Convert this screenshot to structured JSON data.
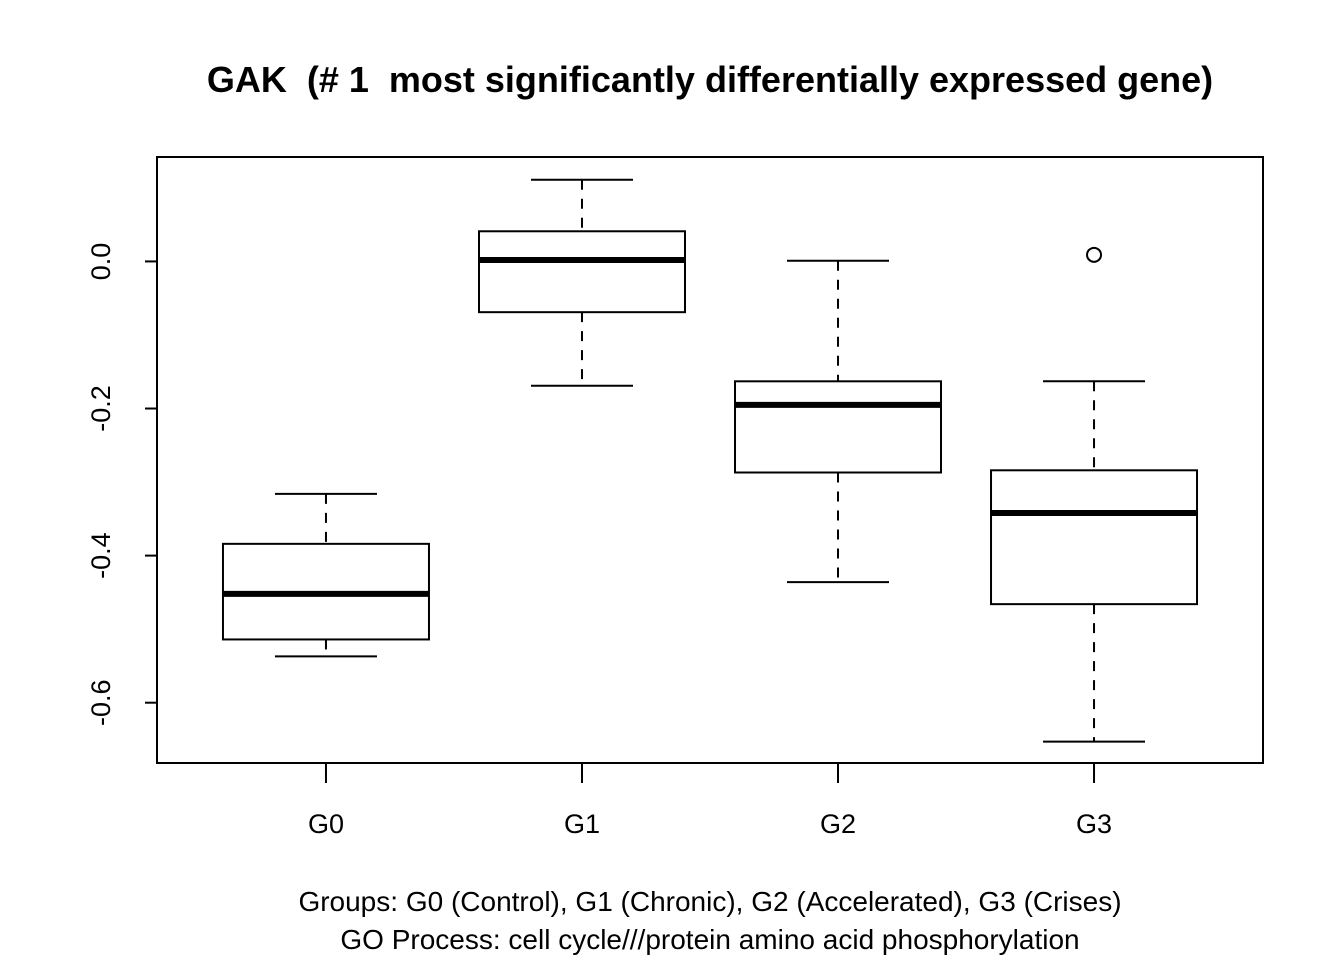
{
  "chart_data": {
    "type": "box",
    "title": "GAK  (# 1  most significantly differentially expressed gene)",
    "xlabel": "",
    "ylabel": "",
    "categories": [
      "G0",
      "G1",
      "G2",
      "G3"
    ],
    "y_ticks": [
      0.0,
      -0.2,
      -0.4,
      -0.6
    ],
    "y_tick_labels": [
      "0.0",
      "-0.2",
      "-0.4",
      "-0.6"
    ],
    "ylim": [
      -0.682,
      0.142
    ],
    "grid": false,
    "boxes": [
      {
        "name": "G0",
        "whisker_low": -0.537,
        "q1": -0.514,
        "median": -0.452,
        "q3": -0.384,
        "whisker_high": -0.316,
        "outliers": []
      },
      {
        "name": "G1",
        "whisker_low": -0.169,
        "q1": -0.069,
        "median": 0.002,
        "q3": 0.041,
        "whisker_high": 0.111,
        "outliers": []
      },
      {
        "name": "G2",
        "whisker_low": -0.436,
        "q1": -0.287,
        "median": -0.195,
        "q3": -0.163,
        "whisker_high": 0.001,
        "outliers": []
      },
      {
        "name": "G3",
        "whisker_low": -0.653,
        "q1": -0.466,
        "median": -0.342,
        "q3": -0.284,
        "whisker_high": -0.163,
        "outliers": [
          0.009
        ]
      }
    ],
    "caption_lines": [
      "Groups: G0 (Control), G1 (Chronic), G2 (Accelerated), G3 (Crises)",
      "GO Process: cell cycle///protein amino acid phosphorylation"
    ]
  }
}
